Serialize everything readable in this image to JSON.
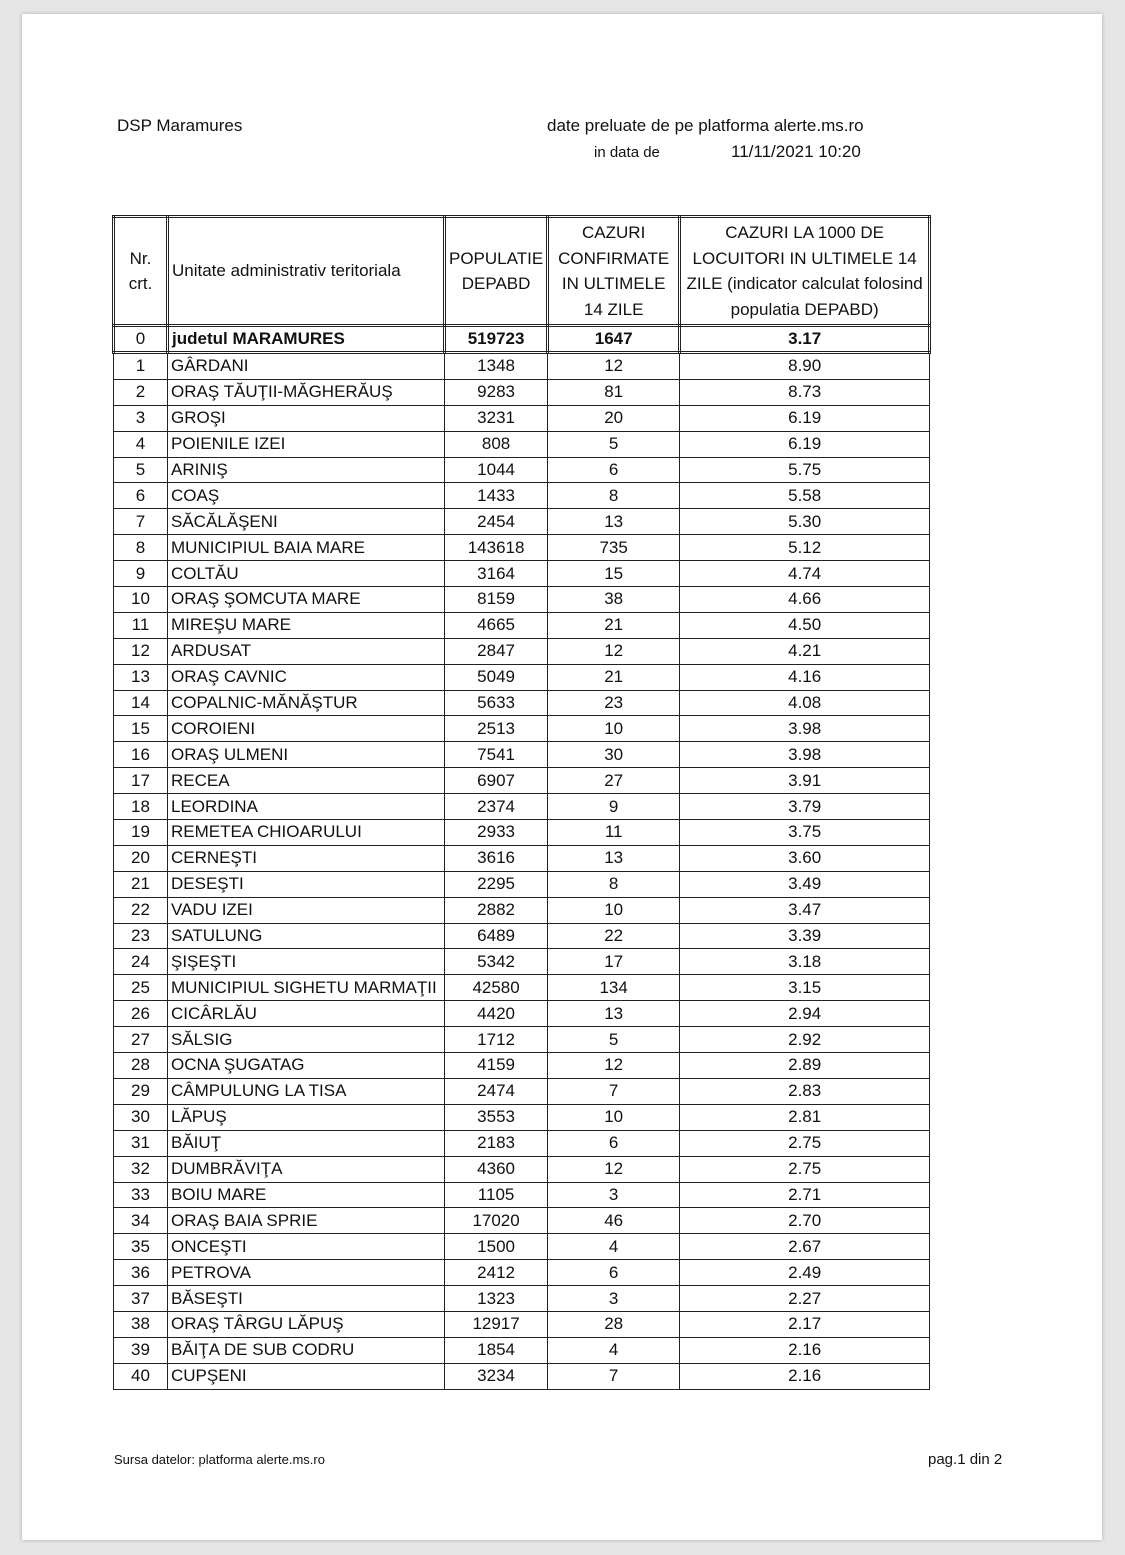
{
  "header": {
    "org": "DSP Maramures",
    "source_line": "date preluate de pe platforma alerte.ms.ro",
    "date_label": "in data de",
    "date_value": "11/11/2021 10:20"
  },
  "table": {
    "columns": [
      "Nr. crt.",
      "Unitate administrativ teritoriala",
      "POPULATIE DEPABD",
      "CAZURI CONFIRMATE IN ULTIMELE 14 ZILE",
      "CAZURI LA 1000 DE LOCUITORI IN ULTIMELE 14 ZILE (indicator calculat folosind populatia DEPABD)"
    ],
    "total": [
      "0",
      "judetul MARAMURES",
      "519723",
      "1647",
      "3.17"
    ],
    "rows": [
      [
        "1",
        "GÂRDANI",
        "1348",
        "12",
        "8.90"
      ],
      [
        "2",
        "ORAŞ TĂUŢII-MĂGHERĂUŞ",
        "9283",
        "81",
        "8.73"
      ],
      [
        "3",
        "GROŞI",
        "3231",
        "20",
        "6.19"
      ],
      [
        "4",
        "POIENILE IZEI",
        "808",
        "5",
        "6.19"
      ],
      [
        "5",
        "ARINIŞ",
        "1044",
        "6",
        "5.75"
      ],
      [
        "6",
        "COAŞ",
        "1433",
        "8",
        "5.58"
      ],
      [
        "7",
        "SĂCĂLĂŞENI",
        "2454",
        "13",
        "5.30"
      ],
      [
        "8",
        "MUNICIPIUL BAIA MARE",
        "143618",
        "735",
        "5.12"
      ],
      [
        "9",
        "COLTĂU",
        "3164",
        "15",
        "4.74"
      ],
      [
        "10",
        "ORAŞ ŞOMCUTA MARE",
        "8159",
        "38",
        "4.66"
      ],
      [
        "11",
        "MIREŞU MARE",
        "4665",
        "21",
        "4.50"
      ],
      [
        "12",
        "ARDUSAT",
        "2847",
        "12",
        "4.21"
      ],
      [
        "13",
        "ORAŞ CAVNIC",
        "5049",
        "21",
        "4.16"
      ],
      [
        "14",
        "COPALNIC-MĂNĂŞTUR",
        "5633",
        "23",
        "4.08"
      ],
      [
        "15",
        "COROIENI",
        "2513",
        "10",
        "3.98"
      ],
      [
        "16",
        "ORAŞ ULMENI",
        "7541",
        "30",
        "3.98"
      ],
      [
        "17",
        "RECEA",
        "6907",
        "27",
        "3.91"
      ],
      [
        "18",
        "LEORDINA",
        "2374",
        "9",
        "3.79"
      ],
      [
        "19",
        "REMETEA CHIOARULUI",
        "2933",
        "11",
        "3.75"
      ],
      [
        "20",
        "CERNEŞTI",
        "3616",
        "13",
        "3.60"
      ],
      [
        "21",
        "DESEŞTI",
        "2295",
        "8",
        "3.49"
      ],
      [
        "22",
        "VADU IZEI",
        "2882",
        "10",
        "3.47"
      ],
      [
        "23",
        "SATULUNG",
        "6489",
        "22",
        "3.39"
      ],
      [
        "24",
        "ŞIŞEŞTI",
        "5342",
        "17",
        "3.18"
      ],
      [
        "25",
        "MUNICIPIUL SIGHETU MARMAŢII",
        "42580",
        "134",
        "3.15"
      ],
      [
        "26",
        "CICÂRLĂU",
        "4420",
        "13",
        "2.94"
      ],
      [
        "27",
        "SĂLSIG",
        "1712",
        "5",
        "2.92"
      ],
      [
        "28",
        "OCNA ŞUGATAG",
        "4159",
        "12",
        "2.89"
      ],
      [
        "29",
        "CÂMPULUNG LA TISA",
        "2474",
        "7",
        "2.83"
      ],
      [
        "30",
        "LĂPUŞ",
        "3553",
        "10",
        "2.81"
      ],
      [
        "31",
        "BĂIUŢ",
        "2183",
        "6",
        "2.75"
      ],
      [
        "32",
        "DUMBRĂVIŢA",
        "4360",
        "12",
        "2.75"
      ],
      [
        "33",
        "BOIU MARE",
        "1105",
        "3",
        "2.71"
      ],
      [
        "34",
        "ORAŞ BAIA SPRIE",
        "17020",
        "46",
        "2.70"
      ],
      [
        "35",
        "ONCEŞTI",
        "1500",
        "4",
        "2.67"
      ],
      [
        "36",
        "PETROVA",
        "2412",
        "6",
        "2.49"
      ],
      [
        "37",
        "BĂSEŞTI",
        "1323",
        "3",
        "2.27"
      ],
      [
        "38",
        "ORAŞ TÂRGU LĂPUŞ",
        "12917",
        "28",
        "2.17"
      ],
      [
        "39",
        "BĂIŢA DE SUB CODRU",
        "1854",
        "4",
        "2.16"
      ],
      [
        "40",
        "CUPŞENI",
        "3234",
        "7",
        "2.16"
      ]
    ]
  },
  "footer": {
    "source": "Sursa datelor:  platforma  alerte.ms.ro",
    "page": "pag.1 din 2"
  }
}
